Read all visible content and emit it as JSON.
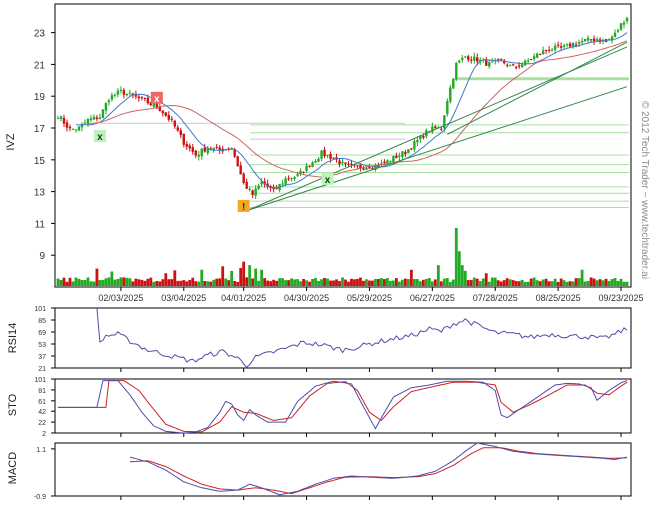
{
  "symbol": "IVZ",
  "watermark": "© 2012 Tech Trader ~ www.techtrader.ai",
  "colors": {
    "up": "#22aa22",
    "down": "#cc1111",
    "ma_fast": "#4477cc",
    "ma_slow": "#cc6666",
    "ma_grey": "#999999",
    "trend": "#33884c",
    "support": "#a8e0a0",
    "indicator": "#4d4dab",
    "signal": "#cc2222",
    "grid_tick": "#000000"
  },
  "chart_data": [
    {
      "type": "candlestick",
      "panel": "price",
      "ylabel": "IVZ",
      "y_ticks": [
        "23",
        "21",
        "19",
        "17",
        "15",
        "13",
        "11",
        "9"
      ],
      "ylim": [
        7,
        24.8
      ],
      "x_tick_labels": [
        "02/03/2025",
        "03/04/2025",
        "04/01/2025",
        "04/30/2025",
        "05/29/2025",
        "06/27/2025",
        "07/28/2025",
        "08/25/2025",
        "09/23/2025"
      ],
      "close_anchors": [
        [
          0,
          17.8
        ],
        [
          4,
          16.9
        ],
        [
          7,
          17.0
        ],
        [
          10,
          17.5
        ],
        [
          14,
          17.7
        ],
        [
          17,
          18.9
        ],
        [
          21,
          19.3
        ],
        [
          25,
          19.0
        ],
        [
          30,
          18.6
        ],
        [
          34,
          18.2
        ],
        [
          38,
          17.4
        ],
        [
          42,
          16.1
        ],
        [
          46,
          15.3
        ],
        [
          50,
          15.8
        ],
        [
          54,
          15.6
        ],
        [
          58,
          15.8
        ],
        [
          62,
          13.5
        ],
        [
          65,
          12.8
        ],
        [
          68,
          13.6
        ],
        [
          72,
          13.0
        ],
        [
          76,
          13.8
        ],
        [
          80,
          14.0
        ],
        [
          84,
          14.7
        ],
        [
          88,
          15.4
        ],
        [
          92,
          15.1
        ],
        [
          96,
          14.6
        ],
        [
          100,
          14.5
        ],
        [
          104,
          14.6
        ],
        [
          108,
          14.7
        ],
        [
          112,
          15.1
        ],
        [
          116,
          15.5
        ],
        [
          120,
          16.2
        ],
        [
          124,
          16.9
        ],
        [
          128,
          17.0
        ],
        [
          130,
          18.8
        ],
        [
          133,
          21.0
        ],
        [
          136,
          21.5
        ],
        [
          140,
          21.3
        ],
        [
          144,
          21.0
        ],
        [
          148,
          21.2
        ],
        [
          152,
          20.8
        ],
        [
          156,
          21.1
        ],
        [
          160,
          21.6
        ],
        [
          164,
          22.0
        ],
        [
          168,
          22.0
        ],
        [
          172,
          22.3
        ],
        [
          176,
          22.5
        ],
        [
          180,
          22.6
        ],
        [
          183,
          22.4
        ],
        [
          186,
          22.9
        ],
        [
          189,
          23.8
        ],
        [
          190,
          24.0
        ]
      ],
      "volume_spikes": [
        [
          13,
          0.3
        ],
        [
          18,
          0.25
        ],
        [
          36,
          0.22
        ],
        [
          39,
          0.27
        ],
        [
          48,
          0.28
        ],
        [
          55,
          0.34
        ],
        [
          58,
          0.26
        ],
        [
          61,
          0.31
        ],
        [
          62,
          0.42
        ],
        [
          64,
          0.36
        ],
        [
          66,
          0.3
        ],
        [
          68,
          0.28
        ],
        [
          118,
          0.28
        ],
        [
          127,
          0.36
        ],
        [
          133,
          1.0
        ],
        [
          134,
          0.6
        ],
        [
          135,
          0.36
        ],
        [
          136,
          0.26
        ],
        [
          143,
          0.22
        ],
        [
          175,
          0.28
        ]
      ],
      "moving_averages": [
        "fast",
        "slow",
        "grey-horizontal"
      ],
      "trendlines": [
        {
          "from": [
            63,
            11.8
          ],
          "to": [
            190,
            19.6
          ]
        },
        {
          "from": [
            63,
            11.8
          ],
          "to": [
            190,
            22.1
          ]
        },
        {
          "from": [
            130,
            16.6
          ],
          "to": [
            190,
            22.4
          ]
        }
      ],
      "support_levels": [
        12.0,
        12.4,
        12.9,
        13.3,
        14.2,
        14.7,
        15.3,
        16.7,
        17.2
      ],
      "resistance_band": [
        20.1,
        20.2
      ],
      "annotations": [
        {
          "label": "x",
          "bar": 14,
          "value": 16.5,
          "style": "green"
        },
        {
          "label": "x",
          "bar": 33,
          "value": 18.9,
          "style": "red"
        },
        {
          "label": "!",
          "bar": 62,
          "value": 12.1,
          "style": "orange"
        },
        {
          "label": "x",
          "bar": 90,
          "value": 13.8,
          "style": "green"
        }
      ]
    },
    {
      "type": "line",
      "panel": "RSI14",
      "ylabel": "RSI14",
      "y_ticks": [
        "101",
        "85",
        "69",
        "53",
        "37",
        "21"
      ],
      "ylim": [
        21,
        101
      ],
      "anchors": [
        [
          13,
          101
        ],
        [
          14,
          55
        ],
        [
          16,
          64
        ],
        [
          20,
          66
        ],
        [
          25,
          55
        ],
        [
          30,
          45
        ],
        [
          35,
          40
        ],
        [
          40,
          35
        ],
        [
          45,
          30
        ],
        [
          50,
          38
        ],
        [
          55,
          43
        ],
        [
          60,
          34
        ],
        [
          63,
          25
        ],
        [
          66,
          35
        ],
        [
          70,
          40
        ],
        [
          76,
          47
        ],
        [
          82,
          55
        ],
        [
          88,
          52
        ],
        [
          95,
          45
        ],
        [
          100,
          49
        ],
        [
          106,
          55
        ],
        [
          112,
          60
        ],
        [
          118,
          64
        ],
        [
          124,
          73
        ],
        [
          128,
          70
        ],
        [
          132,
          80
        ],
        [
          136,
          85
        ],
        [
          140,
          78
        ],
        [
          146,
          68
        ],
        [
          152,
          66
        ],
        [
          158,
          62
        ],
        [
          164,
          66
        ],
        [
          170,
          64
        ],
        [
          176,
          63
        ],
        [
          182,
          60
        ],
        [
          186,
          66
        ],
        [
          190,
          74
        ]
      ]
    },
    {
      "type": "line",
      "panel": "STO",
      "ylabel": "STO",
      "y_ticks": [
        "101",
        "81",
        "61",
        "42",
        "22",
        "2"
      ],
      "ylim": [
        2,
        101
      ],
      "series": [
        {
          "role": "k",
          "anchors": [
            [
              0,
              49
            ],
            [
              13,
              49
            ],
            [
              15,
              98
            ],
            [
              20,
              98
            ],
            [
              24,
              72
            ],
            [
              28,
              40
            ],
            [
              32,
              15
            ],
            [
              36,
              5
            ],
            [
              42,
              2
            ],
            [
              46,
              4
            ],
            [
              50,
              12
            ],
            [
              54,
              40
            ],
            [
              56,
              60
            ],
            [
              58,
              55
            ],
            [
              60,
              35
            ],
            [
              62,
              25
            ],
            [
              64,
              45
            ],
            [
              66,
              35
            ],
            [
              70,
              22
            ],
            [
              76,
              22
            ],
            [
              80,
              60
            ],
            [
              86,
              88
            ],
            [
              92,
              97
            ],
            [
              98,
              92
            ],
            [
              102,
              50
            ],
            [
              106,
              10
            ],
            [
              108,
              30
            ],
            [
              112,
              68
            ],
            [
              118,
              85
            ],
            [
              124,
              90
            ],
            [
              130,
              97
            ],
            [
              136,
              97
            ],
            [
              142,
              95
            ],
            [
              146,
              80
            ],
            [
              148,
              35
            ],
            [
              150,
              30
            ],
            [
              154,
              45
            ],
            [
              158,
              60
            ],
            [
              162,
              75
            ],
            [
              166,
              90
            ],
            [
              170,
              93
            ],
            [
              174,
              92
            ],
            [
              178,
              85
            ],
            [
              180,
              62
            ],
            [
              184,
              80
            ],
            [
              188,
              94
            ],
            [
              190,
              98
            ]
          ]
        },
        {
          "role": "d",
          "anchors": [
            [
              0,
              49
            ],
            [
              16,
              49
            ],
            [
              17,
              98
            ],
            [
              22,
              98
            ],
            [
              27,
              80
            ],
            [
              32,
              45
            ],
            [
              36,
              18
            ],
            [
              42,
              5
            ],
            [
              48,
              4
            ],
            [
              54,
              22
            ],
            [
              58,
              50
            ],
            [
              62,
              40
            ],
            [
              66,
              38
            ],
            [
              72,
              25
            ],
            [
              78,
              30
            ],
            [
              84,
              70
            ],
            [
              90,
              93
            ],
            [
              96,
              96
            ],
            [
              100,
              80
            ],
            [
              104,
              40
            ],
            [
              108,
              25
            ],
            [
              112,
              50
            ],
            [
              118,
              78
            ],
            [
              126,
              88
            ],
            [
              132,
              95
            ],
            [
              140,
              95
            ],
            [
              146,
              90
            ],
            [
              148,
              58
            ],
            [
              152,
              40
            ],
            [
              158,
              55
            ],
            [
              164,
              72
            ],
            [
              170,
              90
            ],
            [
              176,
              90
            ],
            [
              180,
              75
            ],
            [
              184,
              72
            ],
            [
              188,
              88
            ],
            [
              190,
              95
            ]
          ]
        }
      ]
    },
    {
      "type": "line",
      "panel": "MACD",
      "ylabel": "MACD",
      "y_ticks": [
        "1.1",
        "-0.9"
      ],
      "ylim": [
        -0.9,
        1.35
      ],
      "series": [
        {
          "role": "macd",
          "anchors": [
            [
              24,
              0.75
            ],
            [
              30,
              0.55
            ],
            [
              36,
              0.2
            ],
            [
              42,
              -0.3
            ],
            [
              48,
              -0.55
            ],
            [
              54,
              -0.7
            ],
            [
              60,
              -0.65
            ],
            [
              64,
              -0.4
            ],
            [
              68,
              -0.55
            ],
            [
              74,
              -0.85
            ],
            [
              80,
              -0.7
            ],
            [
              86,
              -0.4
            ],
            [
              92,
              -0.15
            ],
            [
              98,
              -0.05
            ],
            [
              104,
              -0.1
            ],
            [
              112,
              -0.15
            ],
            [
              120,
              -0.05
            ],
            [
              126,
              0.15
            ],
            [
              132,
              0.6
            ],
            [
              136,
              1.0
            ],
            [
              140,
              1.35
            ],
            [
              146,
              1.2
            ],
            [
              152,
              1.0
            ],
            [
              158,
              0.9
            ],
            [
              164,
              0.85
            ],
            [
              170,
              0.8
            ],
            [
              176,
              0.75
            ],
            [
              182,
              0.7
            ],
            [
              186,
              0.65
            ],
            [
              190,
              0.75
            ]
          ]
        },
        {
          "role": "signal",
          "anchors": [
            [
              24,
              0.55
            ],
            [
              30,
              0.6
            ],
            [
              36,
              0.35
            ],
            [
              42,
              -0.05
            ],
            [
              48,
              -0.4
            ],
            [
              54,
              -0.6
            ],
            [
              60,
              -0.65
            ],
            [
              66,
              -0.55
            ],
            [
              72,
              -0.65
            ],
            [
              78,
              -0.8
            ],
            [
              84,
              -0.55
            ],
            [
              90,
              -0.3
            ],
            [
              96,
              -0.1
            ],
            [
              104,
              -0.08
            ],
            [
              112,
              -0.12
            ],
            [
              120,
              -0.08
            ],
            [
              126,
              0.05
            ],
            [
              132,
              0.4
            ],
            [
              138,
              0.9
            ],
            [
              142,
              1.15
            ],
            [
              148,
              1.15
            ],
            [
              154,
              1.0
            ],
            [
              160,
              0.9
            ],
            [
              166,
              0.85
            ],
            [
              172,
              0.8
            ],
            [
              178,
              0.75
            ],
            [
              184,
              0.7
            ],
            [
              190,
              0.72
            ]
          ]
        }
      ]
    }
  ]
}
